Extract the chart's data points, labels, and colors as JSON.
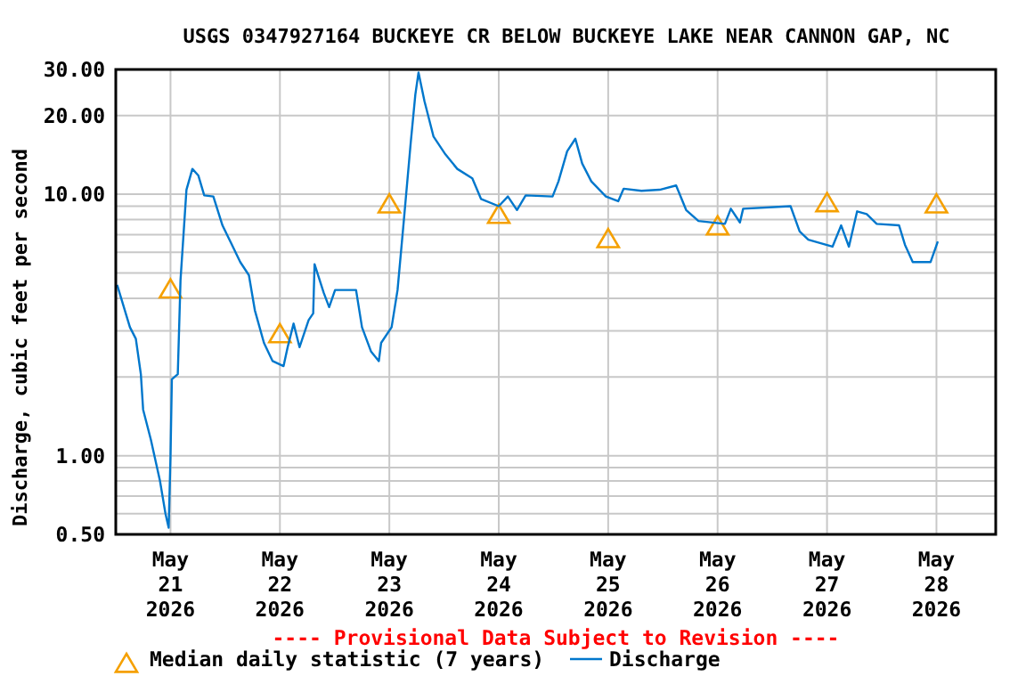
{
  "chart_data": {
    "type": "line",
    "title": "USGS 0347927164 BUCKEYE CR BELOW BUCKEYE LAKE NEAR CANNON GAP, NC",
    "ylabel": "Discharge, cubic feet per second",
    "annotations": [
      "---- Provisional Data Subject to Revision ----"
    ],
    "log": "y",
    "grid": true,
    "legend": "bottom",
    "xlim": [
      "2026-05-20T12:00",
      "2026-05-28T13:00"
    ],
    "xticks": [
      {
        "value": "2026-05-21",
        "label": "May\n21\n2026"
      },
      {
        "value": "2026-05-22",
        "label": "May\n22\n2026"
      },
      {
        "value": "2026-05-23",
        "label": "May\n23\n2026"
      },
      {
        "value": "2026-05-24",
        "label": "May\n24\n2026"
      },
      {
        "value": "2026-05-25",
        "label": "May\n25\n2026"
      },
      {
        "value": "2026-05-26",
        "label": "May\n26\n2026"
      },
      {
        "value": "2026-05-27",
        "label": "May\n27\n2026"
      },
      {
        "value": "2026-05-28",
        "label": "May\n28\n2026"
      }
    ],
    "ylim": [
      0.5,
      30
    ],
    "yticks": [
      {
        "value": 0.5,
        "label": "0.50"
      },
      {
        "value": 0.6,
        "label": null
      },
      {
        "value": 0.7,
        "label": null
      },
      {
        "value": 0.8,
        "label": null
      },
      {
        "value": 0.9,
        "label": null
      },
      {
        "value": 1,
        "label": "1.00"
      },
      {
        "value": 2,
        "label": null
      },
      {
        "value": 3,
        "label": null
      },
      {
        "value": 4,
        "label": null
      },
      {
        "value": 5,
        "label": null
      },
      {
        "value": 6,
        "label": null
      },
      {
        "value": 7,
        "label": null
      },
      {
        "value": 8,
        "label": null
      },
      {
        "value": 9,
        "label": null
      },
      {
        "value": 10,
        "label": "10.00"
      },
      {
        "value": 20,
        "label": "20.00"
      },
      {
        "value": 30,
        "label": "30.00"
      }
    ],
    "series": [
      {
        "name": "Median daily statistic (7 years)",
        "type": "scatter",
        "marker": "triangle",
        "color": "#f5a000",
        "x": [
          "2026-05-21",
          "2026-05-22",
          "2026-05-23",
          "2026-05-24",
          "2026-05-25",
          "2026-05-26",
          "2026-05-27",
          "2026-05-28"
        ],
        "values": [
          4.3,
          2.9,
          9.1,
          8.3,
          6.7,
          7.5,
          9.2,
          9.1
        ]
      },
      {
        "name": "Discharge",
        "marker": "none",
        "line_style": "solid",
        "color": "#0077cc",
        "x": [
          "2026-05-20T12:18",
          "2026-05-20T15:06",
          "2026-05-20T16:24",
          "2026-05-20T17:30",
          "2026-05-20T18:00",
          "2026-05-20T19:42",
          "2026-05-20T21:42",
          "2026-05-20T22:54",
          "2026-05-20T23:36",
          "2026-05-21T00:00",
          "2026-05-21T00:18",
          "2026-05-21T01:36",
          "2026-05-21T02:12",
          "2026-05-21T02:54",
          "2026-05-21T03:30",
          "2026-05-21T04:48",
          "2026-05-21T06:06",
          "2026-05-21T07:24",
          "2026-05-21T09:24",
          "2026-05-21T11:24",
          "2026-05-21T13:18",
          "2026-05-21T15:18",
          "2026-05-21T17:12",
          "2026-05-21T18:30",
          "2026-05-21T20:30",
          "2026-05-21T22:24",
          "2026-05-22T00:48",
          "2026-05-22T01:42",
          "2026-05-22T03:00",
          "2026-05-22T04:18",
          "2026-05-22T06:18",
          "2026-05-22T07:18",
          "2026-05-22T07:36",
          "2026-05-22T09:36",
          "2026-05-22T10:48",
          "2026-05-22T12:06",
          "2026-05-22T16:42",
          "2026-05-22T18:00",
          "2026-05-22T20:00",
          "2026-05-22T21:42",
          "2026-05-22T22:12",
          "2026-05-23T00:30",
          "2026-05-23T01:48",
          "2026-05-23T03:12",
          "2026-05-23T04:42",
          "2026-05-23T05:42",
          "2026-05-23T06:24",
          "2026-05-23T07:42",
          "2026-05-23T09:42",
          "2026-05-23T12:18",
          "2026-05-23T14:54",
          "2026-05-23T18:12",
          "2026-05-23T20:06",
          "2026-05-24T00:00",
          "2026-05-24T02:00",
          "2026-05-24T04:00",
          "2026-05-24T05:54",
          "2026-05-24T11:48",
          "2026-05-24T13:06",
          "2026-05-24T15:00",
          "2026-05-24T16:48",
          "2026-05-24T18:18",
          "2026-05-24T20:18",
          "2026-05-24T23:30",
          "2026-05-25T02:12",
          "2026-05-25T03:24",
          "2026-05-25T07:18",
          "2026-05-25T11:18",
          "2026-05-25T14:54",
          "2026-05-25T17:06",
          "2026-05-25T19:48",
          "2026-05-26T01:36",
          "2026-05-26T02:54",
          "2026-05-26T04:54",
          "2026-05-26T05:36",
          "2026-05-26T16:00",
          "2026-05-26T18:00",
          "2026-05-26T19:54",
          "2026-05-27T01:12",
          "2026-05-27T03:06",
          "2026-05-27T04:48",
          "2026-05-27T06:36",
          "2026-05-27T08:42",
          "2026-05-27T10:54",
          "2026-05-27T15:48",
          "2026-05-27T17:06",
          "2026-05-27T18:48",
          "2026-05-27T22:42",
          "2026-05-28T00:18"
        ],
        "values": [
          4.5,
          3.1,
          2.8,
          2.05,
          1.5,
          1.15,
          0.8,
          0.6,
          0.53,
          0.99,
          1.96,
          2.05,
          4.7,
          7.2,
          10.4,
          12.5,
          11.8,
          9.9,
          9.8,
          7.6,
          6.5,
          5.5,
          4.9,
          3.6,
          2.7,
          2.3,
          2.2,
          2.6,
          3.2,
          2.6,
          3.3,
          3.5,
          5.4,
          4.2,
          3.7,
          4.3,
          4.3,
          3.1,
          2.5,
          2.3,
          2.7,
          3.1,
          4.3,
          8.0,
          15.8,
          24,
          29.2,
          22.7,
          16.6,
          14.2,
          12.5,
          11.5,
          9.6,
          9.0,
          9.8,
          8.7,
          9.9,
          9.8,
          11.2,
          14.6,
          16.3,
          13.1,
          11.2,
          9.8,
          9.4,
          10.5,
          10.3,
          10.4,
          10.8,
          8.7,
          7.9,
          7.7,
          8.8,
          7.8,
          8.8,
          9.0,
          7.2,
          6.7,
          6.3,
          7.6,
          6.3,
          8.6,
          8.4,
          7.7,
          7.6,
          6.4,
          5.5,
          5.5,
          6.6
        ]
      }
    ]
  }
}
